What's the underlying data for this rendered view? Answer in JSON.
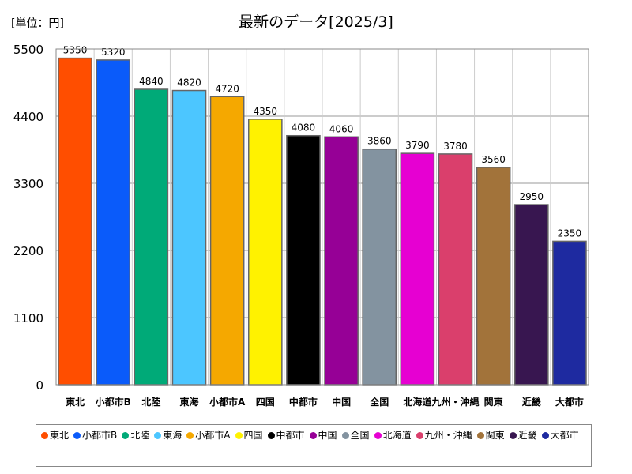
{
  "unit_label": "[単位：円]",
  "chart_data": {
    "type": "bar",
    "title": "最新のデータ[2025/3]",
    "categories": [
      "東北",
      "小都市B",
      "北陸",
      "東海",
      "小都市A",
      "四国",
      "中都市",
      "中国",
      "全国",
      "北海道",
      "九州・沖縄",
      "関東",
      "近畿",
      "大都市"
    ],
    "values": [
      5350,
      5320,
      4840,
      4820,
      4720,
      4350,
      4080,
      4060,
      3860,
      3790,
      3780,
      3560,
      2950,
      2350
    ],
    "colors": [
      "#ff4e00",
      "#0a5bfa",
      "#00aa78",
      "#4cc6ff",
      "#f5a800",
      "#fff200",
      "#000000",
      "#960096",
      "#8393a0",
      "#e600d2",
      "#da3f6c",
      "#a2733a",
      "#381650",
      "#1e2aa0"
    ],
    "yticks": [
      0,
      1100,
      2200,
      3300,
      4400,
      5500
    ],
    "ylim": [
      0,
      5500
    ],
    "grid": true,
    "legend_position": "bottom"
  }
}
